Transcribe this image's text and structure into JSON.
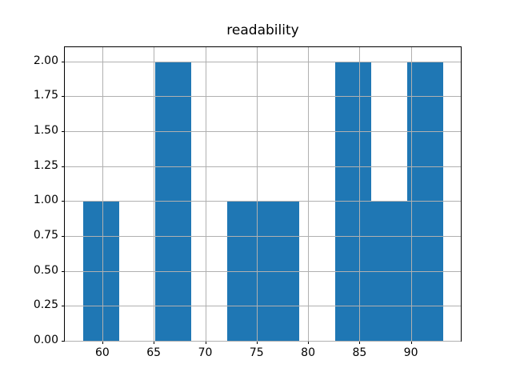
{
  "chart_data": {
    "type": "bar",
    "subtype": "histogram",
    "title": "readability",
    "xlabel": "",
    "ylabel": "",
    "bin_edges": [
      58.1,
      61.6,
      65.1,
      68.6,
      72.1,
      75.6,
      79.1,
      82.6,
      86.1,
      89.6,
      93.1
    ],
    "bin_width": 3.5,
    "counts": [
      1,
      0,
      2,
      0,
      1,
      1,
      0,
      2,
      1,
      2
    ],
    "xlim": [
      56.35,
      94.85
    ],
    "ylim": [
      0,
      2.1
    ],
    "x_tick_values": [
      60,
      65,
      70,
      75,
      80,
      85,
      90
    ],
    "x_tick_labels": [
      "60",
      "65",
      "70",
      "75",
      "80",
      "85",
      "90"
    ],
    "y_tick_values": [
      0.0,
      0.25,
      0.5,
      0.75,
      1.0,
      1.25,
      1.5,
      1.75,
      2.0
    ],
    "y_tick_labels": [
      "0.00",
      "0.25",
      "0.50",
      "0.75",
      "1.00",
      "1.25",
      "1.50",
      "1.75",
      "2.00"
    ],
    "grid": true,
    "grid_color": "#b0b0b0",
    "grid_above_bars": true,
    "bar_color": "#1f77b4",
    "background_color": "#ffffff",
    "spine_color": "#000000",
    "legend": null
  }
}
